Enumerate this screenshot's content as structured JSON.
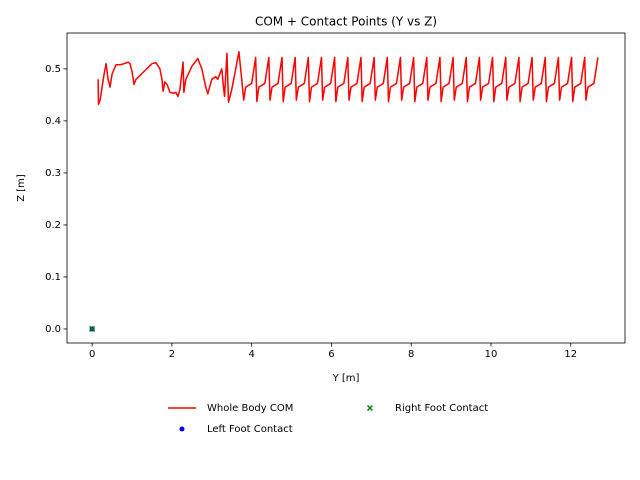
{
  "chart_data": {
    "type": "line",
    "title": "COM + Contact Points (Y vs Z)",
    "xlabel": "Y [m]",
    "ylabel": "Z [m]",
    "xlim": [
      -0.63,
      13.36
    ],
    "ylim": [
      -0.027,
      0.569
    ],
    "xticks": [
      0,
      2,
      4,
      6,
      8,
      10,
      12
    ],
    "yticks": [
      {
        "value": 0,
        "label": "0.0"
      },
      0.1,
      0.2,
      0.3,
      0.4,
      0.5
    ],
    "series": [
      {
        "name": "Whole Body COM",
        "color": "#ff0000",
        "marker": "line",
        "x": [
          0.15,
          0.16,
          0.2,
          0.3,
          0.35,
          0.4,
          0.45,
          0.5,
          0.6,
          0.7,
          0.8,
          0.9,
          0.95,
          1.0,
          1.05,
          1.1,
          1.3,
          1.5,
          1.6,
          1.7,
          1.75,
          1.78,
          1.82,
          1.88,
          1.95,
          2.05,
          2.1,
          2.15,
          2.2,
          2.28,
          2.3,
          2.35,
          2.5,
          2.65,
          2.75,
          2.85,
          2.9,
          3.0,
          3.1,
          3.15,
          3.25,
          3.3,
          3.32,
          3.38,
          3.42,
          3.5,
          3.6,
          3.68,
          3.75,
          3.8,
          3.85,
          4.0,
          4.1,
          4.13,
          4.18,
          4.33,
          4.43,
          4.46,
          4.51,
          4.66,
          4.76,
          4.79,
          4.84,
          4.99,
          5.09,
          5.12,
          5.17,
          5.32,
          5.42,
          5.45,
          5.5,
          5.65,
          5.75,
          5.78,
          5.83,
          5.98,
          6.08,
          6.11,
          6.16,
          6.31,
          6.41,
          6.44,
          6.49,
          6.64,
          6.74,
          6.77,
          6.82,
          6.97,
          7.07,
          7.1,
          7.15,
          7.3,
          7.4,
          7.43,
          7.48,
          7.63,
          7.73,
          7.76,
          7.81,
          7.96,
          8.06,
          8.09,
          8.14,
          8.29,
          8.39,
          8.42,
          8.47,
          8.62,
          8.72,
          8.75,
          8.8,
          8.95,
          9.05,
          9.08,
          9.13,
          9.28,
          9.38,
          9.41,
          9.46,
          9.61,
          9.71,
          9.74,
          9.79,
          9.94,
          10.04,
          10.07,
          10.12,
          10.27,
          10.37,
          10.4,
          10.45,
          10.6,
          10.7,
          10.73,
          10.78,
          10.93,
          11.03,
          11.06,
          11.11,
          11.26,
          11.36,
          11.39,
          11.44,
          11.59,
          11.69,
          11.72,
          11.77,
          11.92,
          12.02,
          12.05,
          12.1,
          12.25,
          12.35,
          12.38,
          12.43,
          12.58,
          12.68
        ],
        "values": [
          0.48,
          0.432,
          0.44,
          0.49,
          0.51,
          0.48,
          0.465,
          0.49,
          0.508,
          0.508,
          0.51,
          0.513,
          0.51,
          0.495,
          0.47,
          0.48,
          0.495,
          0.51,
          0.512,
          0.5,
          0.48,
          0.457,
          0.475,
          0.47,
          0.455,
          0.453,
          0.455,
          0.447,
          0.46,
          0.513,
          0.455,
          0.48,
          0.505,
          0.52,
          0.5,
          0.465,
          0.452,
          0.48,
          0.485,
          0.48,
          0.5,
          0.46,
          0.447,
          0.53,
          0.436,
          0.46,
          0.5,
          0.533,
          0.48,
          0.44,
          0.465,
          0.472,
          0.522,
          0.437,
          0.465,
          0.472,
          0.522,
          0.44,
          0.465,
          0.472,
          0.522,
          0.437,
          0.465,
          0.472,
          0.522,
          0.44,
          0.465,
          0.472,
          0.522,
          0.437,
          0.465,
          0.472,
          0.522,
          0.44,
          0.465,
          0.472,
          0.522,
          0.437,
          0.465,
          0.472,
          0.522,
          0.44,
          0.465,
          0.472,
          0.522,
          0.437,
          0.465,
          0.472,
          0.522,
          0.44,
          0.465,
          0.472,
          0.522,
          0.437,
          0.465,
          0.472,
          0.522,
          0.44,
          0.465,
          0.472,
          0.522,
          0.437,
          0.465,
          0.472,
          0.522,
          0.44,
          0.465,
          0.472,
          0.522,
          0.437,
          0.465,
          0.472,
          0.522,
          0.44,
          0.465,
          0.472,
          0.522,
          0.437,
          0.465,
          0.472,
          0.522,
          0.44,
          0.465,
          0.472,
          0.522,
          0.437,
          0.465,
          0.472,
          0.522,
          0.44,
          0.465,
          0.472,
          0.522,
          0.437,
          0.465,
          0.472,
          0.522,
          0.44,
          0.465,
          0.472,
          0.522,
          0.437,
          0.465,
          0.472,
          0.522,
          0.44,
          0.465,
          0.472,
          0.522,
          0.437,
          0.465,
          0.472,
          0.522,
          0.44,
          0.465,
          0.472,
          0.522
        ]
      },
      {
        "name": "Left Foot Contact",
        "color": "#0000ff",
        "marker": "dot",
        "x": [
          0
        ],
        "values": [
          0
        ]
      },
      {
        "name": "Right Foot Contact",
        "color": "#008000",
        "marker": "cross",
        "x": [
          0
        ],
        "values": [
          0
        ]
      }
    ]
  }
}
